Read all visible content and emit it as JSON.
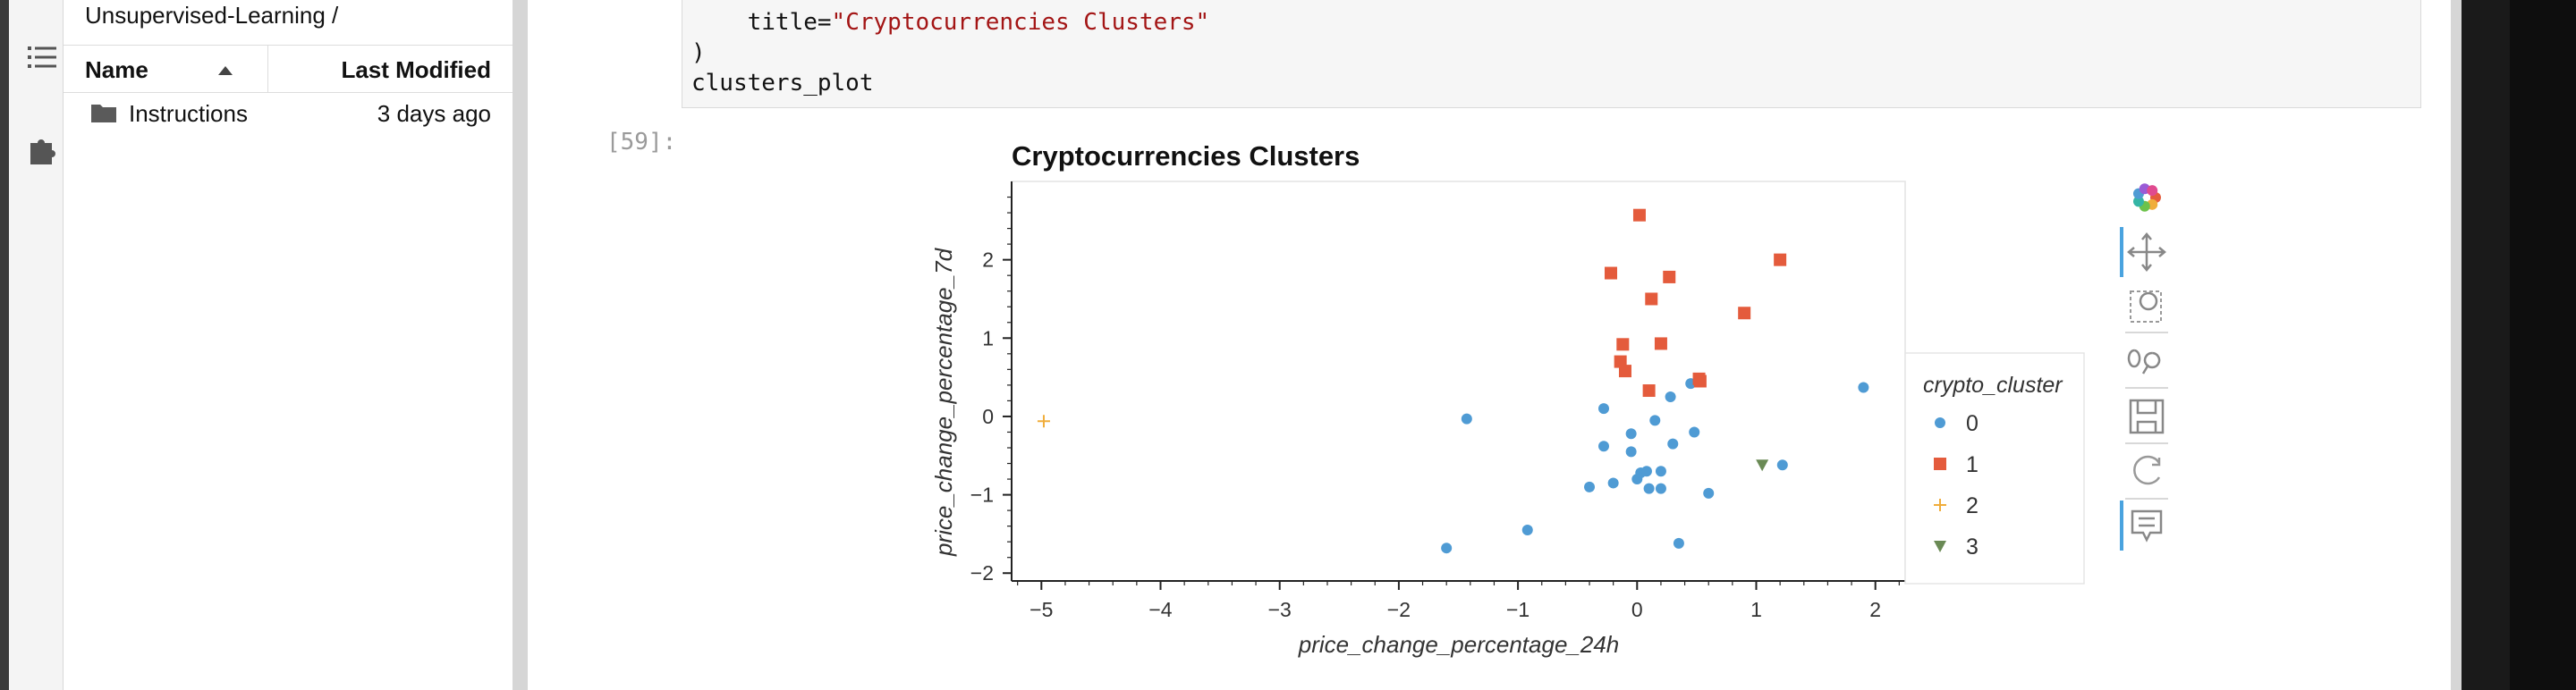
{
  "sidebar": {
    "breadcrumb": "Unsupervised-Learning /",
    "columns": {
      "name": "Name",
      "last_modified": "Last Modified"
    },
    "files": [
      {
        "name": "Instructions",
        "modified": "3 days ago",
        "type": "folder"
      }
    ],
    "icons": [
      "list-icon",
      "puzzle-piece-icon",
      "folder-icon",
      "sort-ascending-icon"
    ]
  },
  "code": {
    "line1": "    title=",
    "line1_str": "\"Cryptocurrencies Clusters\"",
    "line2": ")",
    "line3": "clusters_plot"
  },
  "output": {
    "prompt": "[59]:"
  },
  "toolbar": {
    "icons": [
      "bokeh-logo-icon",
      "pan-icon",
      "box-zoom-icon",
      "wheel-zoom-icon",
      "save-icon",
      "reset-icon",
      "hover-icon"
    ]
  },
  "colors": {
    "cluster_0": "#4f9bd4",
    "cluster_1": "#e45b3c",
    "cluster_2": "#f0ad3b",
    "cluster_3": "#6a8a55",
    "toolbar_active": "#4aa3df"
  },
  "chart_data": {
    "type": "scatter",
    "title": "Cryptocurrencies Clusters",
    "xlabel": "price_change_percentage_24h",
    "ylabel": "price_change_percentage_7d",
    "xlim": [
      -5.25,
      2.25
    ],
    "ylim": [
      -2.1,
      3.0
    ],
    "xticks": [
      -5,
      -4,
      -3,
      -2,
      -1,
      0,
      1,
      2
    ],
    "yticks": [
      -2,
      -1,
      0,
      1,
      2
    ],
    "legend_title": "crypto_cluster",
    "legend_position": "right",
    "series": [
      {
        "name": "0",
        "marker": "circle",
        "color": "#4f9bd4",
        "points": [
          [
            -1.43,
            -0.03
          ],
          [
            -1.6,
            -1.68
          ],
          [
            -0.92,
            -1.45
          ],
          [
            -0.28,
            0.1
          ],
          [
            -0.28,
            -0.38
          ],
          [
            -0.4,
            -0.9
          ],
          [
            -0.2,
            -0.85
          ],
          [
            -0.05,
            -0.22
          ],
          [
            -0.05,
            -0.45
          ],
          [
            0.0,
            -0.8
          ],
          [
            0.03,
            -0.72
          ],
          [
            0.08,
            -0.7
          ],
          [
            0.1,
            -0.92
          ],
          [
            0.15,
            -0.05
          ],
          [
            0.2,
            -0.7
          ],
          [
            0.2,
            -0.92
          ],
          [
            0.28,
            0.25
          ],
          [
            0.3,
            -0.35
          ],
          [
            0.35,
            -1.62
          ],
          [
            0.45,
            0.42
          ],
          [
            0.48,
            -0.2
          ],
          [
            0.6,
            -0.98
          ],
          [
            1.22,
            -0.62
          ],
          [
            1.9,
            0.37
          ]
        ]
      },
      {
        "name": "1",
        "marker": "square",
        "color": "#e45b3c",
        "points": [
          [
            0.02,
            2.57
          ],
          [
            -0.22,
            1.83
          ],
          [
            0.27,
            1.78
          ],
          [
            0.12,
            1.5
          ],
          [
            1.2,
            2.0
          ],
          [
            0.9,
            1.32
          ],
          [
            -0.12,
            0.92
          ],
          [
            0.2,
            0.93
          ],
          [
            -0.14,
            0.7
          ],
          [
            -0.1,
            0.58
          ],
          [
            0.1,
            0.33
          ],
          [
            0.52,
            0.48
          ],
          [
            0.53,
            0.45
          ]
        ]
      },
      {
        "name": "2",
        "marker": "cross",
        "color": "#f0ad3b",
        "points": [
          [
            -4.98,
            -0.06
          ]
        ]
      },
      {
        "name": "3",
        "marker": "triangle",
        "color": "#6a8a55",
        "points": [
          [
            1.05,
            -0.62
          ]
        ]
      }
    ]
  }
}
